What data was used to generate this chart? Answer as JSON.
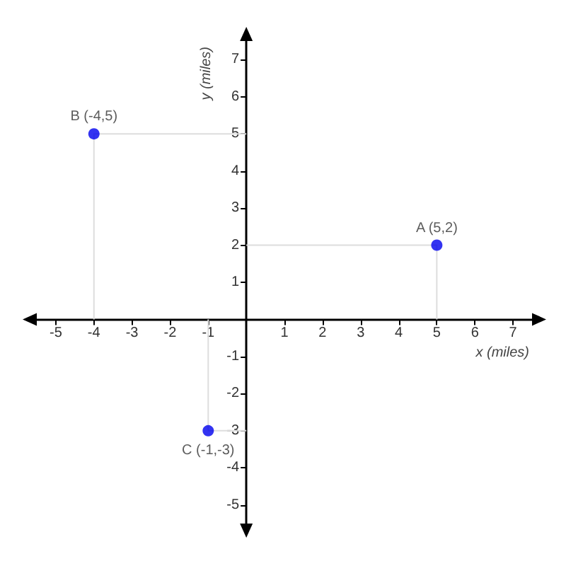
{
  "chart_data": {
    "type": "scatter",
    "xlabel": "x (miles)",
    "ylabel": "y (miles)",
    "xlim": [
      -5.5,
      7.5
    ],
    "ylim": [
      -5.5,
      7.5
    ],
    "xticks": [
      -5,
      -4,
      -3,
      -2,
      -1,
      1,
      2,
      3,
      4,
      5,
      6,
      7
    ],
    "yticks": [
      -5,
      -4,
      -3,
      -2,
      -1,
      1,
      2,
      3,
      4,
      5,
      6,
      7
    ],
    "grid": false,
    "marker": "circle",
    "series": [
      {
        "type": "line",
        "color": "#dddddd",
        "marker": "none",
        "x": [
          5,
          5,
          0
        ],
        "values": [
          0,
          2,
          2
        ]
      },
      {
        "type": "line",
        "color": "#dddddd",
        "marker": "none",
        "x": [
          -4,
          -4,
          0
        ],
        "values": [
          0,
          5,
          5
        ]
      },
      {
        "type": "line",
        "color": "#dddddd",
        "marker": "none",
        "x": [
          -1,
          -1,
          0
        ],
        "values": [
          0,
          -3,
          -3
        ]
      },
      {
        "type": "scatter",
        "color": "#0000ee",
        "x": [
          5,
          -4,
          -1
        ],
        "values": [
          2,
          5,
          -3
        ]
      }
    ],
    "annotations": [
      {
        "text": "A (5,2)",
        "x": 5,
        "y": 2
      },
      {
        "text": "B (-4,5)",
        "x": -4,
        "y": 5
      },
      {
        "text": "C (-1,-3)",
        "x": -1,
        "y": -3
      }
    ]
  }
}
